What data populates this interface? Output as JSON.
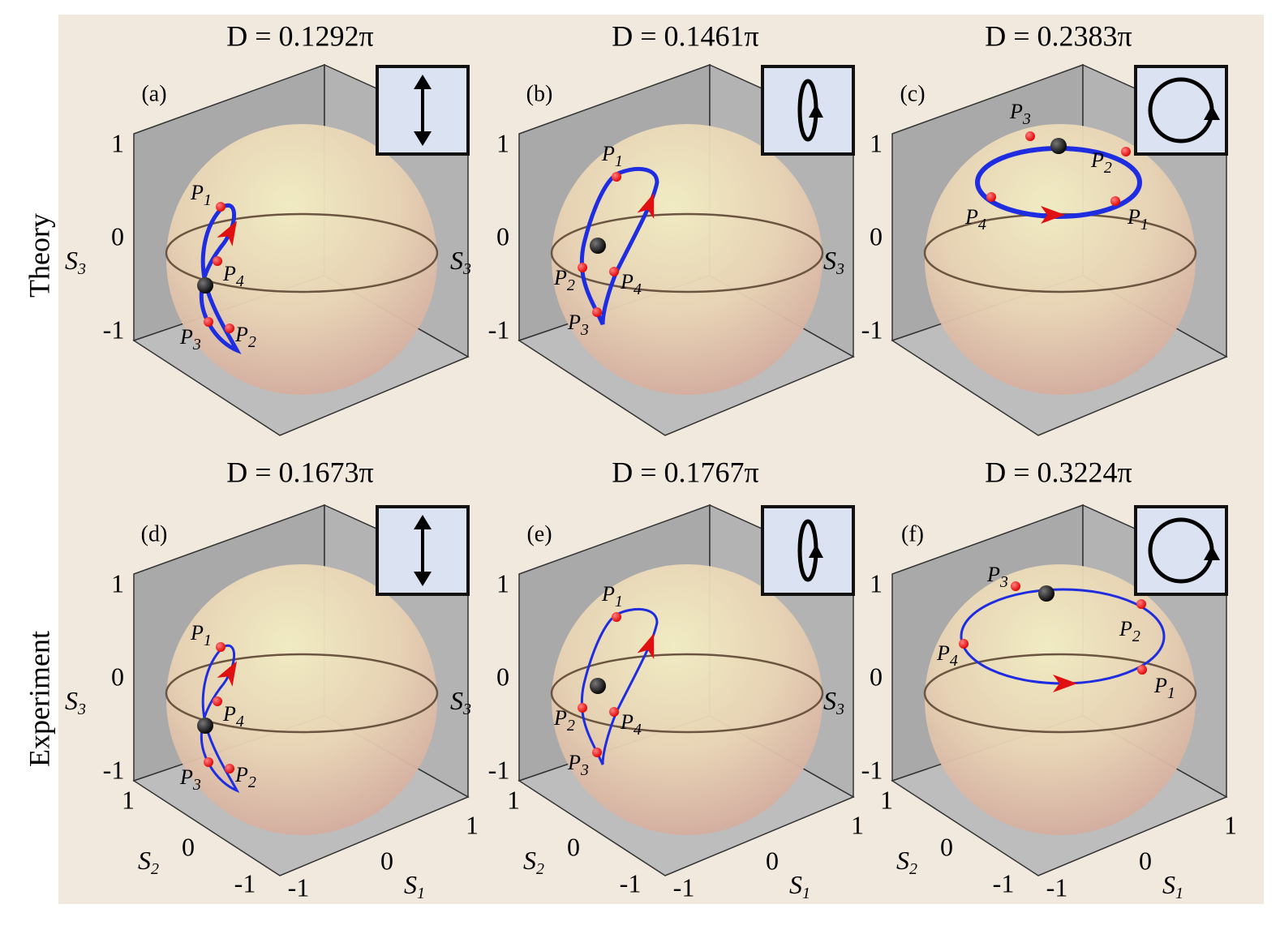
{
  "row_labels": [
    "Theory",
    "Experiment"
  ],
  "panels": [
    {
      "label": "(a)",
      "title": "D = 0.1292π"
    },
    {
      "label": "(b)",
      "title": "D = 0.1461π"
    },
    {
      "label": "(c)",
      "title": "D = 0.2383π"
    },
    {
      "label": "(d)",
      "title": "D = 0.1673π"
    },
    {
      "label": "(e)",
      "title": "D = 0.1767π"
    },
    {
      "label": "(f)",
      "title": "D = 0.3224π"
    }
  ],
  "axis_symbol": "S",
  "axis_indices": [
    "1",
    "2",
    "3"
  ],
  "s3_ticks": [
    "1",
    "0",
    "-1"
  ],
  "s2_ticks": [
    "1",
    "0",
    "-1"
  ],
  "s1_ticks": [
    "-1",
    "0",
    "1"
  ],
  "point_symbol": "P",
  "point_indices": [
    "1",
    "2",
    "3",
    "4"
  ]
}
